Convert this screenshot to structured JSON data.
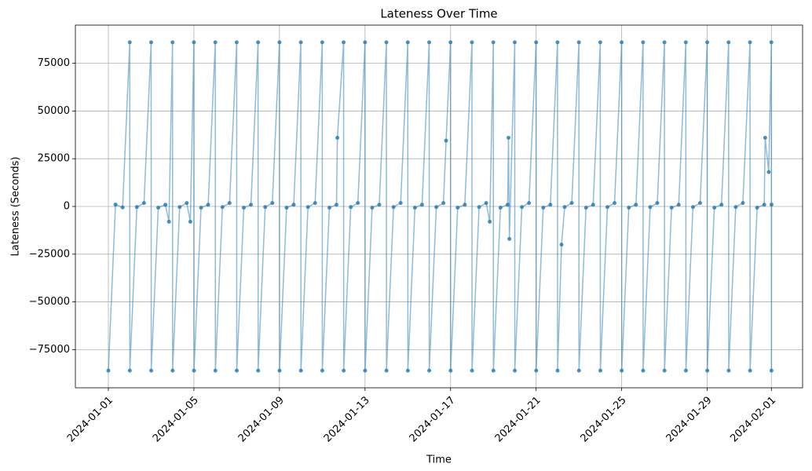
{
  "chart_data": {
    "type": "line",
    "title": "Lateness Over Time",
    "x_label": "Time",
    "y_label": "Lateness (Seconds)",
    "x": [
      "2024-01-01 00:00",
      "2024-01-01 08:00",
      "2024-01-01 16:00",
      "2024-01-02 00:00",
      "2024-01-02 00:05",
      "2024-01-02 08:00",
      "2024-01-02 16:00",
      "2024-01-03 00:00",
      "2024-01-03 00:05",
      "2024-01-03 08:00",
      "2024-01-03 16:00",
      "2024-01-03 20:00",
      "2024-01-04 00:00",
      "2024-01-04 00:05",
      "2024-01-04 08:00",
      "2024-01-04 16:00",
      "2024-01-04 20:00",
      "2024-01-05 00:00",
      "2024-01-05 00:05",
      "2024-01-05 08:00",
      "2024-01-05 16:00",
      "2024-01-06 00:00",
      "2024-01-06 00:05",
      "2024-01-06 08:00",
      "2024-01-06 16:00",
      "2024-01-07 00:00",
      "2024-01-07 00:05",
      "2024-01-07 08:00",
      "2024-01-07 16:00",
      "2024-01-08 00:00",
      "2024-01-08 00:05",
      "2024-01-08 08:00",
      "2024-01-08 16:00",
      "2024-01-09 00:00",
      "2024-01-09 00:05",
      "2024-01-09 08:00",
      "2024-01-09 16:00",
      "2024-01-10 00:00",
      "2024-01-10 00:05",
      "2024-01-10 08:00",
      "2024-01-10 16:00",
      "2024-01-11 00:00",
      "2024-01-11 00:05",
      "2024-01-11 08:00",
      "2024-01-11 16:00",
      "2024-01-11 17:00",
      "2024-01-12 00:00",
      "2024-01-12 00:05",
      "2024-01-12 08:00",
      "2024-01-12 16:00",
      "2024-01-13 00:00",
      "2024-01-13 00:05",
      "2024-01-13 08:00",
      "2024-01-13 16:00",
      "2024-01-14 00:00",
      "2024-01-14 00:05",
      "2024-01-14 08:00",
      "2024-01-14 16:00",
      "2024-01-15 00:00",
      "2024-01-15 00:05",
      "2024-01-15 08:00",
      "2024-01-15 16:00",
      "2024-01-16 00:00",
      "2024-01-16 00:05",
      "2024-01-16 08:00",
      "2024-01-16 16:00",
      "2024-01-16 19:00",
      "2024-01-17 00:00",
      "2024-01-17 00:05",
      "2024-01-17 08:00",
      "2024-01-17 16:00",
      "2024-01-18 00:00",
      "2024-01-18 00:05",
      "2024-01-18 08:00",
      "2024-01-18 16:00",
      "2024-01-18 20:00",
      "2024-01-19 00:00",
      "2024-01-19 00:05",
      "2024-01-19 08:00",
      "2024-01-19 16:00",
      "2024-01-19 17:00",
      "2024-01-19 18:00",
      "2024-01-20 00:00",
      "2024-01-20 00:05",
      "2024-01-20 08:00",
      "2024-01-20 16:00",
      "2024-01-21 00:00",
      "2024-01-21 00:05",
      "2024-01-21 08:00",
      "2024-01-21 16:00",
      "2024-01-22 00:00",
      "2024-01-22 00:05",
      "2024-01-22 04:30",
      "2024-01-22 08:00",
      "2024-01-22 16:00",
      "2024-01-23 00:00",
      "2024-01-23 00:05",
      "2024-01-23 08:00",
      "2024-01-23 16:00",
      "2024-01-24 00:00",
      "2024-01-24 00:05",
      "2024-01-24 08:00",
      "2024-01-24 16:00",
      "2024-01-25 00:00",
      "2024-01-25 00:05",
      "2024-01-25 08:00",
      "2024-01-25 16:00",
      "2024-01-26 00:00",
      "2024-01-26 00:05",
      "2024-01-26 08:00",
      "2024-01-26 16:00",
      "2024-01-27 00:00",
      "2024-01-27 00:05",
      "2024-01-27 08:00",
      "2024-01-27 16:00",
      "2024-01-28 00:00",
      "2024-01-28 00:05",
      "2024-01-28 08:00",
      "2024-01-28 16:00",
      "2024-01-29 00:00",
      "2024-01-29 00:05",
      "2024-01-29 08:00",
      "2024-01-29 16:00",
      "2024-01-30 00:00",
      "2024-01-30 00:05",
      "2024-01-30 08:00",
      "2024-01-30 16:00",
      "2024-01-31 00:00",
      "2024-01-31 00:05",
      "2024-01-31 08:00",
      "2024-01-31 16:00",
      "2024-01-31 17:00",
      "2024-01-31 21:00",
      "2024-02-01 00:00",
      "2024-02-01 00:05",
      "2024-02-01 00:10"
    ],
    "series": [
      {
        "color": "#1f77b4",
        "values": [
          -86000,
          1000,
          -500,
          86000,
          -86000,
          -300,
          1800,
          86000,
          -86000,
          -600,
          900,
          -8000,
          86000,
          -86000,
          -300,
          1800,
          -8000,
          86000,
          -86000,
          -600,
          900,
          86000,
          -86000,
          -300,
          1800,
          86000,
          -86000,
          -600,
          900,
          86000,
          -86000,
          -300,
          1800,
          86000,
          -86000,
          -600,
          900,
          86000,
          -86000,
          -300,
          1800,
          86000,
          -86000,
          -600,
          900,
          36000,
          86000,
          -86000,
          -300,
          1800,
          86000,
          -86000,
          -600,
          900,
          86000,
          -86000,
          -300,
          1800,
          86000,
          -86000,
          -600,
          900,
          86000,
          -86000,
          -300,
          1800,
          34500,
          86000,
          -86000,
          -600,
          900,
          86000,
          -86000,
          -300,
          1800,
          -8000,
          86000,
          -86000,
          -600,
          900,
          36000,
          -17000,
          86000,
          -86000,
          -300,
          1800,
          86000,
          -86000,
          -600,
          900,
          86000,
          -86000,
          -20000,
          -300,
          1800,
          86000,
          -86000,
          -600,
          900,
          86000,
          -86000,
          -300,
          1800,
          86000,
          -86000,
          -600,
          900,
          86000,
          -86000,
          -300,
          1800,
          86000,
          -86000,
          -600,
          900,
          86000,
          -86000,
          -300,
          1800,
          86000,
          -86000,
          -600,
          900,
          86000,
          -86000,
          -300,
          1800,
          86000,
          -86000,
          -600,
          900,
          36000,
          18000,
          86000,
          -86000,
          1000
        ]
      }
    ],
    "xlim": [
      "2023-12-30 11:00",
      "2024-02-02 11:00"
    ],
    "xticks": [
      "2024-01-01",
      "2024-01-05",
      "2024-01-09",
      "2024-01-13",
      "2024-01-17",
      "2024-01-21",
      "2024-01-25",
      "2024-01-29",
      "2024-02-01"
    ],
    "ylim": [
      -95000,
      95000
    ],
    "yticks": [
      {
        "value": -75000,
        "label": "−75000"
      },
      {
        "value": -50000,
        "label": "−50000"
      },
      {
        "value": -25000,
        "label": "−25000"
      },
      0,
      25000,
      50000,
      75000
    ],
    "grid": true
  }
}
